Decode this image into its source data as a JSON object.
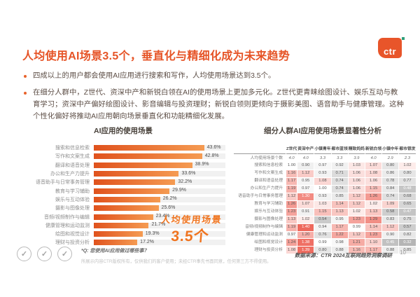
{
  "header": {
    "title": "人均使用AI场景3.5个，垂直化与精细化成为未来趋势",
    "logo_text": "ctr",
    "accent_color": "#e8552a"
  },
  "bullets": [
    "四成以上的用户都会使用AI应用进行搜索和写作，人均使用场景达到3.5个。",
    "在细分人群中，Z世代、资深中产和新锐白领在AI的使用场景上更加多元化。Z世代更青睐绘图设计、娱乐互动与教育学习；资深中产偏好绘图设计、影音编辑与投资理财；新锐白领则更倾向于摄影美图、语音助手与健康管理。这种个性化偏好将推动AI应用朝向场景垂直化和功能精细化发展。"
  ],
  "chart_data": [
    {
      "type": "bar",
      "title": "AI应用的使用场景",
      "categories": [
        "搜索和信息检索",
        "写作和文案生成",
        "翻译和语音处理",
        "办公和生产力提升",
        "语音助手与日常事务管理",
        "教育与学习辅助",
        "娱乐与互动体验",
        "摄影与图像处理",
        "音频/视频制作与编辑",
        "健康管理和运动监测",
        "绘图和视觉设计",
        "理财与投资分析"
      ],
      "values": [
        43.6,
        42.8,
        38.9,
        33.6,
        32.2,
        29.9,
        26.2,
        25.6,
        23.4,
        21.7,
        19.3,
        17.2
      ],
      "unit": "%",
      "xlim": [
        0,
        52
      ],
      "orientation": "horizontal",
      "bar_color": "#e8632c",
      "grid": false,
      "legend_position": "none",
      "annotation": {
        "line1": "人均使用场景",
        "line2": "3.5个"
      }
    },
    {
      "type": "heatmap",
      "title": "细分人群AI应用使用场景显著性分析",
      "columns": [
        "Z世代",
        "资深中产",
        "小镇青年",
        "都市蓝领",
        "精致妈妈",
        "新锐白领",
        "小镇中年",
        "都市银发"
      ],
      "rows": [
        {
          "label": "人均使用场景个数",
          "values": [
            "4.0",
            "4.0",
            "3.3",
            "3.3",
            "3.9",
            "4.0",
            "2.9",
            "2.3"
          ],
          "shade": false
        },
        {
          "label": "搜索和信息检索",
          "values": [
            "1.00",
            "0.90",
            "0.97",
            "0.92",
            "1.03",
            "1.07",
            "0.80",
            "1.02"
          ]
        },
        {
          "label": "写作和文案生成",
          "values": [
            "1.16",
            "1.12",
            "0.93",
            "0.71",
            "1.06",
            "1.08",
            "0.86",
            "0.80"
          ]
        },
        {
          "label": "翻译和语音处理",
          "values": [
            "1.17",
            "0.95",
            "1.08",
            "0.74",
            "1.06",
            "1.06",
            "0.78",
            "0.77"
          ]
        },
        {
          "label": "办公和生产力提升",
          "values": [
            "1.19",
            "0.97",
            "1.00",
            "0.74",
            "1.06",
            "1.15",
            "0.84",
            "0.48"
          ]
        },
        {
          "label": "语音助手与日常事务管理",
          "values": [
            "1.12",
            "1.30",
            "0.93",
            "0.85",
            "1.12",
            "1.26",
            "0.74",
            "0.68"
          ]
        },
        {
          "label": "教育与学习辅助",
          "values": [
            "1.26",
            "1.07",
            "1.03",
            "1.14",
            "1.12",
            "1.02",
            "1.09",
            "0.65"
          ]
        },
        {
          "label": "娱乐与互动体验",
          "values": [
            "1.23",
            "0.91",
            "1.15",
            "1.13",
            "1.02",
            "1.13",
            "0.58",
            "0.47"
          ]
        },
        {
          "label": "摄影与图像处理",
          "values": [
            "1.13",
            "1.02",
            "0.54",
            "0.95",
            "1.23",
            "1.29",
            "0.83",
            "0.75"
          ]
        },
        {
          "label": "音频/视频制作与编辑",
          "values": [
            "1.19",
            "1.40",
            "0.94",
            "1.17",
            "0.99",
            "1.14",
            "1.12",
            "0.57"
          ]
        },
        {
          "label": "健康管理和运动监测",
          "values": [
            "0.97",
            "1.20",
            "0.76",
            "1.22",
            "1.12",
            "1.23",
            "0.90",
            "0.82"
          ]
        },
        {
          "label": "绘图和视觉设计",
          "values": [
            "1.24",
            "1.38",
            "0.99",
            "0.98",
            "1.21",
            "1.10",
            "0.45",
            "0.32"
          ]
        },
        {
          "label": "理财与投资分析",
          "values": [
            "1.08",
            "1.39",
            "0.80",
            "0.88",
            "1.16",
            "1.17",
            "0.88",
            "0.85"
          ]
        }
      ],
      "high_color": "#ea4435",
      "low_color": "#787878",
      "legend_position": "none"
    }
  ],
  "footer": {
    "question": "*Q: 您使用AI应用做过哪些事？",
    "copyright": "所展示内容CTR版权所有，仅供我们的客户使用；未经CTR事先书面同意，任何第三方不得使用。",
    "source": "数据来源：CTR 2024互联网趋势洞察调研",
    "page_number": "10",
    "badge_glyph": "✓"
  }
}
